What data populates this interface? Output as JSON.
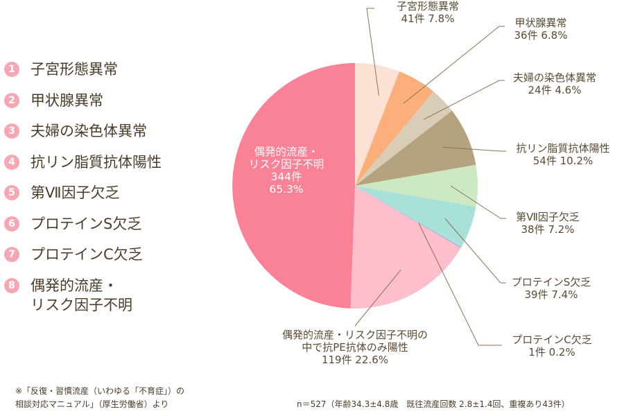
{
  "legend": [
    {
      "num": "1",
      "label": "子宮形態異常"
    },
    {
      "num": "2",
      "label": "甲状腺異常"
    },
    {
      "num": "3",
      "label": "夫婦の染色体異常"
    },
    {
      "num": "4",
      "label": "抗リン脂質抗体陽性"
    },
    {
      "num": "5",
      "label": "第Ⅶ因子欠乏"
    },
    {
      "num": "6",
      "label": "プロテインS欠乏"
    },
    {
      "num": "7",
      "label": "プロテインC欠乏"
    },
    {
      "num": "8",
      "label": "偶発的流産・\nリスク因子不明"
    }
  ],
  "note": "※「反復・習慣流産（いわゆる「不育症」）の\n相談対応マニュアル」（厚生労働省）より",
  "stats": "n＝527（年齢34.3±4.8歳　既往流産回数 2.8±1.4回、重複あり43件）",
  "chart_data": {
    "type": "pie",
    "start": "12 o'clock, clockwise",
    "slices": [
      {
        "label": "子宮形態異常",
        "count": 41,
        "count_text": "41件",
        "percent": 7.8,
        "percent_text": "7.8%",
        "color": "#fde1d4"
      },
      {
        "label": "甲状腺異常",
        "count": 36,
        "count_text": "36件",
        "percent": 6.8,
        "percent_text": "6.8%",
        "color": "#fbb07c"
      },
      {
        "label": "夫婦の染色体異常",
        "count": 24,
        "count_text": "24件",
        "percent": 4.6,
        "percent_text": "4.6%",
        "color": "#d9cdb8"
      },
      {
        "label": "抗リン脂質抗体陽性",
        "count": 54,
        "count_text": "54件",
        "percent": 10.2,
        "percent_text": "10.2%",
        "color": "#b5a27f"
      },
      {
        "label": "第Ⅶ因子欠乏",
        "count": 38,
        "count_text": "38件",
        "percent": 7.2,
        "percent_text": "7.2%",
        "color": "#cce9c4"
      },
      {
        "label": "プロテインS欠乏",
        "count": 39,
        "count_text": "39件",
        "percent": 7.4,
        "percent_text": "7.4%",
        "color": "#a7e1d7"
      },
      {
        "label": "プロテインC欠乏",
        "count": 1,
        "count_text": "1件",
        "percent": 0.2,
        "percent_text": "0.2%",
        "color": "#b4a7dc"
      },
      {
        "label": "偶発的流産・リスク因子不明の\n中で抗PE抗体のみ陽性",
        "count": 119,
        "count_text": "119件",
        "percent": 22.6,
        "percent_text": "22.6%",
        "color": "#fdbfcb"
      },
      {
        "label": "偶発的流産・\nリスク因子不明",
        "count": 344,
        "count_text": "344件",
        "percent": 65.3,
        "percent_text": "65.3%",
        "color": "#fa8296"
      }
    ],
    "leader_color": "#8a7350"
  }
}
